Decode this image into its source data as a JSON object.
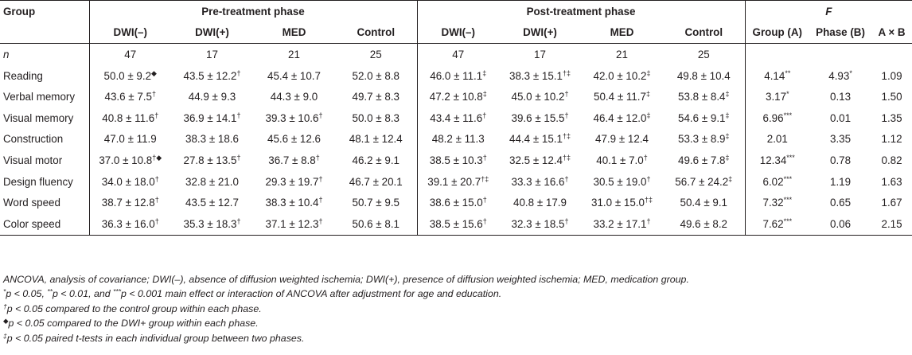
{
  "table": {
    "group_header": "Group",
    "pre_phase_header": "Pre-treatment phase",
    "post_phase_header": "Post-treatment phase",
    "f_header": "F",
    "pre_columns": [
      "DWI(–)",
      "DWI(+)",
      "MED",
      "Control"
    ],
    "post_columns": [
      "DWI(–)",
      "DWI(+)",
      "MED",
      "Control"
    ],
    "f_columns": [
      "Group (A)",
      "Phase (B)",
      "A × B"
    ],
    "n_row": {
      "label": "n",
      "pre": [
        "47",
        "17",
        "21",
        "25"
      ],
      "post": [
        "47",
        "17",
        "21",
        "25"
      ]
    },
    "rows": [
      {
        "label": "Reading",
        "pre": [
          {
            "v": "50.0 ± 9.2",
            "s": "◆"
          },
          {
            "v": "43.5 ± 12.2",
            "s": "†"
          },
          {
            "v": "45.4 ± 10.7",
            "s": ""
          },
          {
            "v": "52.0 ± 8.8",
            "s": ""
          }
        ],
        "post": [
          {
            "v": "46.0 ± 11.1",
            "s": "‡"
          },
          {
            "v": "38.3 ± 15.1",
            "s": "†‡"
          },
          {
            "v": "42.0 ± 10.2",
            "s": "‡"
          },
          {
            "v": "49.8 ± 10.4",
            "s": ""
          }
        ],
        "f": [
          {
            "v": "4.14",
            "s": "**"
          },
          {
            "v": "4.93",
            "s": "*"
          },
          {
            "v": "1.09",
            "s": ""
          }
        ]
      },
      {
        "label": "Verbal memory",
        "pre": [
          {
            "v": "43.6 ± 7.5",
            "s": "†"
          },
          {
            "v": "44.9 ± 9.3",
            "s": ""
          },
          {
            "v": "44.3 ± 9.0",
            "s": ""
          },
          {
            "v": "49.7 ± 8.3",
            "s": ""
          }
        ],
        "post": [
          {
            "v": "47.2 ± 10.8",
            "s": "‡"
          },
          {
            "v": "45.0 ± 10.2",
            "s": "†"
          },
          {
            "v": "50.4 ± 11.7",
            "s": "‡"
          },
          {
            "v": "53.8 ± 8.4",
            "s": "‡"
          }
        ],
        "f": [
          {
            "v": "3.17",
            "s": "*"
          },
          {
            "v": "0.13",
            "s": ""
          },
          {
            "v": "1.50",
            "s": ""
          }
        ]
      },
      {
        "label": "Visual memory",
        "pre": [
          {
            "v": "40.8 ± 11.6",
            "s": "†"
          },
          {
            "v": "36.9 ± 14.1",
            "s": "†"
          },
          {
            "v": "39.3 ± 10.6",
            "s": "†"
          },
          {
            "v": "50.0 ± 8.3",
            "s": ""
          }
        ],
        "post": [
          {
            "v": "43.4 ± 11.6",
            "s": "†"
          },
          {
            "v": "39.6 ± 15.5",
            "s": "†"
          },
          {
            "v": "46.4 ± 12.0",
            "s": "‡"
          },
          {
            "v": "54.6 ± 9.1",
            "s": "‡"
          }
        ],
        "f": [
          {
            "v": "6.96",
            "s": "***"
          },
          {
            "v": "0.01",
            "s": ""
          },
          {
            "v": "1.35",
            "s": ""
          }
        ]
      },
      {
        "label": "Construction",
        "pre": [
          {
            "v": "47.0 ± 11.9",
            "s": ""
          },
          {
            "v": "38.3 ± 18.6",
            "s": ""
          },
          {
            "v": "45.6 ± 12.6",
            "s": ""
          },
          {
            "v": "48.1 ± 12.4",
            "s": ""
          }
        ],
        "post": [
          {
            "v": "48.2 ± 11.3",
            "s": ""
          },
          {
            "v": "44.4 ± 15.1",
            "s": "†‡"
          },
          {
            "v": "47.9 ± 12.4",
            "s": ""
          },
          {
            "v": "53.3 ± 8.9",
            "s": "‡"
          }
        ],
        "f": [
          {
            "v": "2.01",
            "s": ""
          },
          {
            "v": "3.35",
            "s": ""
          },
          {
            "v": "1.12",
            "s": ""
          }
        ]
      },
      {
        "label": "Visual motor",
        "pre": [
          {
            "v": "37.0 ± 10.8",
            "s": "†◆"
          },
          {
            "v": "27.8 ± 13.5",
            "s": "†"
          },
          {
            "v": "36.7 ± 8.8",
            "s": "†"
          },
          {
            "v": "46.2 ± 9.1",
            "s": ""
          }
        ],
        "post": [
          {
            "v": "38.5 ± 10.3",
            "s": "†"
          },
          {
            "v": "32.5 ± 12.4",
            "s": "†‡"
          },
          {
            "v": "40.1 ± 7.0",
            "s": "†"
          },
          {
            "v": "49.6 ± 7.8",
            "s": "‡"
          }
        ],
        "f": [
          {
            "v": "12.34",
            "s": "***"
          },
          {
            "v": "0.78",
            "s": ""
          },
          {
            "v": "0.82",
            "s": ""
          }
        ]
      },
      {
        "label": "Design fluency",
        "pre": [
          {
            "v": "34.0 ± 18.0",
            "s": "†"
          },
          {
            "v": "32.8 ± 21.0",
            "s": ""
          },
          {
            "v": "29.3 ± 19.7",
            "s": "†"
          },
          {
            "v": "46.7 ± 20.1",
            "s": ""
          }
        ],
        "post": [
          {
            "v": "39.1 ± 20.7",
            "s": "†‡"
          },
          {
            "v": "33.3 ± 16.6",
            "s": "†"
          },
          {
            "v": "30.5 ± 19.0",
            "s": "†"
          },
          {
            "v": "56.7 ± 24.2",
            "s": "‡"
          }
        ],
        "f": [
          {
            "v": "6.02",
            "s": "***"
          },
          {
            "v": "1.19",
            "s": ""
          },
          {
            "v": "1.63",
            "s": ""
          }
        ]
      },
      {
        "label": "Word speed",
        "pre": [
          {
            "v": "38.7 ± 12.8",
            "s": "†"
          },
          {
            "v": "43.5 ± 12.7",
            "s": ""
          },
          {
            "v": "38.3 ± 10.4",
            "s": "†"
          },
          {
            "v": "50.7 ± 9.5",
            "s": ""
          }
        ],
        "post": [
          {
            "v": "38.6 ± 15.0",
            "s": "†"
          },
          {
            "v": "40.8 ± 17.9",
            "s": ""
          },
          {
            "v": "31.0 ± 15.0",
            "s": "†‡"
          },
          {
            "v": "50.4 ± 9.1",
            "s": ""
          }
        ],
        "f": [
          {
            "v": "7.32",
            "s": "***"
          },
          {
            "v": "0.65",
            "s": ""
          },
          {
            "v": "1.67",
            "s": ""
          }
        ]
      },
      {
        "label": "Color speed",
        "pre": [
          {
            "v": "36.3 ± 16.0",
            "s": "†"
          },
          {
            "v": "35.3 ± 18.3",
            "s": "†"
          },
          {
            "v": "37.1 ± 12.3",
            "s": "†"
          },
          {
            "v": "50.6 ± 8.1",
            "s": ""
          }
        ],
        "post": [
          {
            "v": "38.5 ± 15.6",
            "s": "†"
          },
          {
            "v": "32.3 ± 18.5",
            "s": "†"
          },
          {
            "v": "33.2 ± 17.1",
            "s": "†"
          },
          {
            "v": "49.6 ± 8.2",
            "s": ""
          }
        ],
        "f": [
          {
            "v": "7.62",
            "s": "***"
          },
          {
            "v": "0.06",
            "s": ""
          },
          {
            "v": "2.15",
            "s": ""
          }
        ]
      }
    ]
  },
  "footnotes": {
    "abbreviations": "ANCOVA, analysis of covariance; DWI(–), absence of diffusion weighted ischemia; DWI(+), presence of diffusion weighted ischemia; MED, medication group.",
    "sig": {
      "s1": "*",
      "t1": "p < 0.05, ",
      "s2": "**",
      "t2": "p < 0.01, and ",
      "s3": "***",
      "t3": "p < 0.001 main effect or interaction of ANCOVA after adjustment for age and education."
    },
    "dagger": {
      "symbol": "†",
      "text": "p < 0.05 compared to the control group within each phase."
    },
    "diamond": {
      "symbol": "◆",
      "text": "p < 0.05 compared to the DWI+ group within each phase."
    },
    "ddagger": {
      "symbol": "‡",
      "text": "p < 0.05 paired t-tests in each individual group between two phases."
    }
  }
}
